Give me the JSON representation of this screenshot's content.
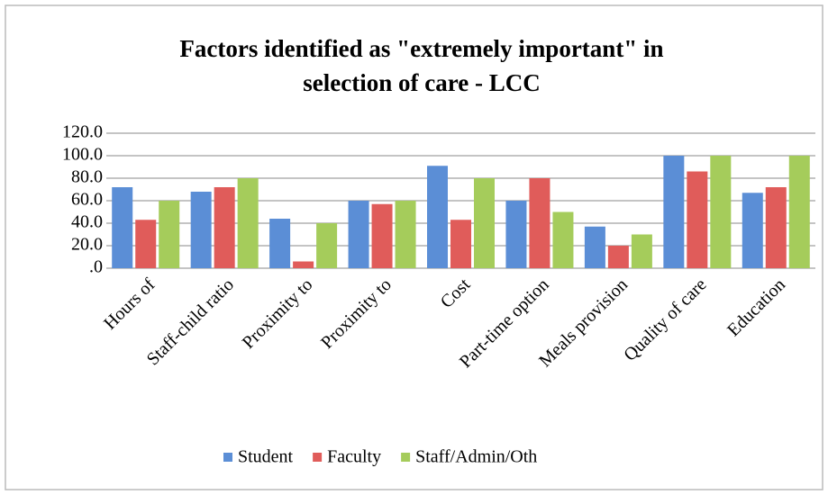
{
  "chart_data": {
    "type": "bar",
    "title": "Factors identified as \"extremely important\" in",
    "subtitle": "selection of care - LCC",
    "categories": [
      "Hours of",
      "Staff-child ratio",
      "Proximity to",
      "Proximity to",
      "Cost",
      "Part-time option",
      "Meals provision",
      "Quality of care",
      "Education"
    ],
    "series": [
      {
        "name": "Student",
        "color": "#5b8ed6",
        "values": [
          72,
          68,
          44,
          60,
          91,
          60,
          37,
          100,
          67
        ]
      },
      {
        "name": "Faculty",
        "color": "#e05c5a",
        "values": [
          43,
          72,
          6,
          57,
          43,
          80,
          20,
          86,
          72
        ]
      },
      {
        "name": "Staff/Admin/Oth",
        "color": "#a5cc5b",
        "values": [
          60,
          80,
          40,
          60,
          80,
          50,
          30,
          100,
          100
        ]
      }
    ],
    "ylim": [
      0,
      120
    ],
    "yticks": [
      {
        "value": 0,
        "label": ".0"
      },
      {
        "value": 20,
        "label": "20.0"
      },
      {
        "value": 40,
        "label": "40.0"
      },
      {
        "value": 60,
        "label": "60.0"
      },
      {
        "value": 80,
        "label": "80.0"
      },
      {
        "value": 100,
        "label": "100.0"
      },
      {
        "value": 120,
        "label": "120.0"
      }
    ],
    "grid": true,
    "legend": "bottom"
  }
}
